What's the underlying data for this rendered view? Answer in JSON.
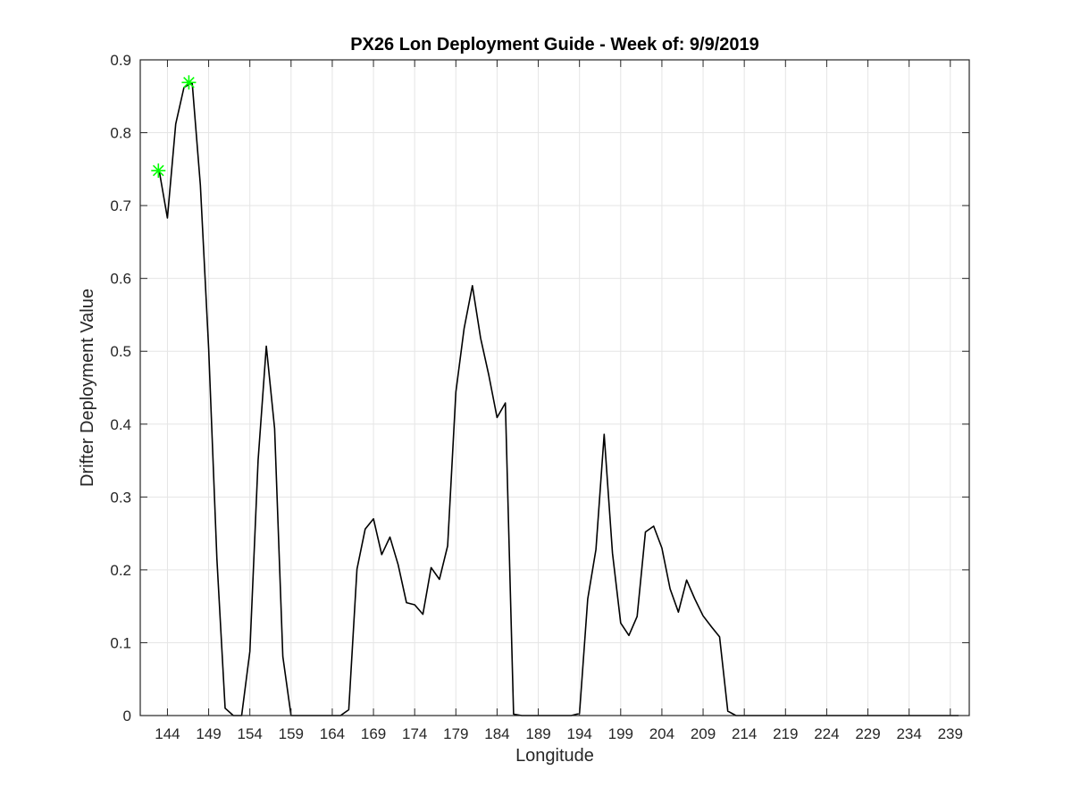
{
  "chart_data": {
    "type": "line",
    "title": "PX26 Lon Deployment Guide - Week of: 9/9/2019",
    "xlabel": "Longitude",
    "ylabel": "Drifter Deployment Value",
    "xlim": [
      140.7,
      241.3
    ],
    "ylim": [
      0,
      0.9
    ],
    "x_ticks": [
      144,
      149,
      154,
      159,
      164,
      169,
      174,
      179,
      184,
      189,
      194,
      199,
      204,
      209,
      214,
      219,
      224,
      229,
      234,
      239
    ],
    "y_ticks": [
      0,
      0.1,
      0.2,
      0.3,
      0.4,
      0.5,
      0.6,
      0.7,
      0.8,
      0.9
    ],
    "grid": true,
    "colors": {
      "line": "#000000",
      "marker": "#00ff00",
      "grid": "#e5e5e5",
      "axes": "#262626"
    },
    "series": [
      {
        "style": "line",
        "x": [
          143.0,
          144.0,
          145.0,
          146.0,
          147.0,
          148.0,
          149.0,
          150.0,
          151.0,
          152.0,
          153.0,
          154.0,
          155.0,
          156.0,
          157.0,
          158.0,
          159.0,
          160.0,
          161.0,
          162.0,
          163.0,
          164.0,
          165.0,
          166.0,
          167.0,
          168.0,
          169.0,
          170.0,
          171.0,
          172.0,
          173.0,
          174.0,
          175.0,
          176.0,
          177.0,
          178.0,
          179.0,
          180.0,
          181.0,
          182.0,
          183.0,
          184.0,
          185.0,
          186.0,
          187.0,
          188.0,
          189.0,
          190.0,
          191.0,
          192.0,
          193.0,
          194.0,
          195.0,
          196.0,
          197.0,
          198.0,
          199.0,
          200.0,
          201.0,
          202.0,
          203.0,
          204.0,
          205.0,
          206.0,
          207.0,
          208.0,
          209.0,
          210.0,
          211.0,
          212.0,
          213.0,
          214.0,
          215.0,
          216.0,
          217.0,
          218.0,
          219.0,
          220.0,
          221.0,
          222.0,
          223.0,
          224.0,
          225.0,
          226.0,
          227.0,
          228.0,
          229.0,
          230.0,
          231.0,
          232.0,
          233.0,
          234.0,
          235.0,
          236.0,
          237.0,
          238.0,
          239.0,
          240.0
        ],
        "values": [
          0.748,
          0.683,
          0.812,
          0.862,
          0.869,
          0.728,
          0.503,
          0.215,
          0.01,
          0.0,
          0.0,
          0.088,
          0.35,
          0.507,
          0.394,
          0.081,
          0.0,
          0.0,
          0.0,
          0.0,
          0.0,
          0.0,
          0.0,
          0.008,
          0.201,
          0.256,
          0.27,
          0.221,
          0.245,
          0.207,
          0.155,
          0.152,
          0.139,
          0.203,
          0.187,
          0.233,
          0.444,
          0.531,
          0.59,
          0.518,
          0.467,
          0.409,
          0.429,
          0.002,
          0.0,
          0.0,
          0.0,
          0.0,
          0.0,
          0.0,
          0.0,
          0.003,
          0.16,
          0.228,
          0.386,
          0.223,
          0.127,
          0.11,
          0.136,
          0.252,
          0.26,
          0.23,
          0.174,
          0.142,
          0.186,
          0.16,
          0.137,
          0.122,
          0.108,
          0.006,
          0.0,
          0.0,
          0.0,
          0.0,
          0.0,
          0.0,
          0.0,
          0.0,
          0.0,
          0.0,
          0.0,
          0.0,
          0.0,
          0.0,
          0.0,
          0.0,
          0.0,
          0.0,
          0.0,
          0.0,
          0.0,
          0.0,
          0.0,
          0.0,
          0.0,
          0.0,
          0.0,
          0.0
        ]
      },
      {
        "style": "marker",
        "marker": "asterisk",
        "x": [
          142.9,
          146.6
        ],
        "values": [
          0.748,
          0.869
        ]
      }
    ]
  }
}
